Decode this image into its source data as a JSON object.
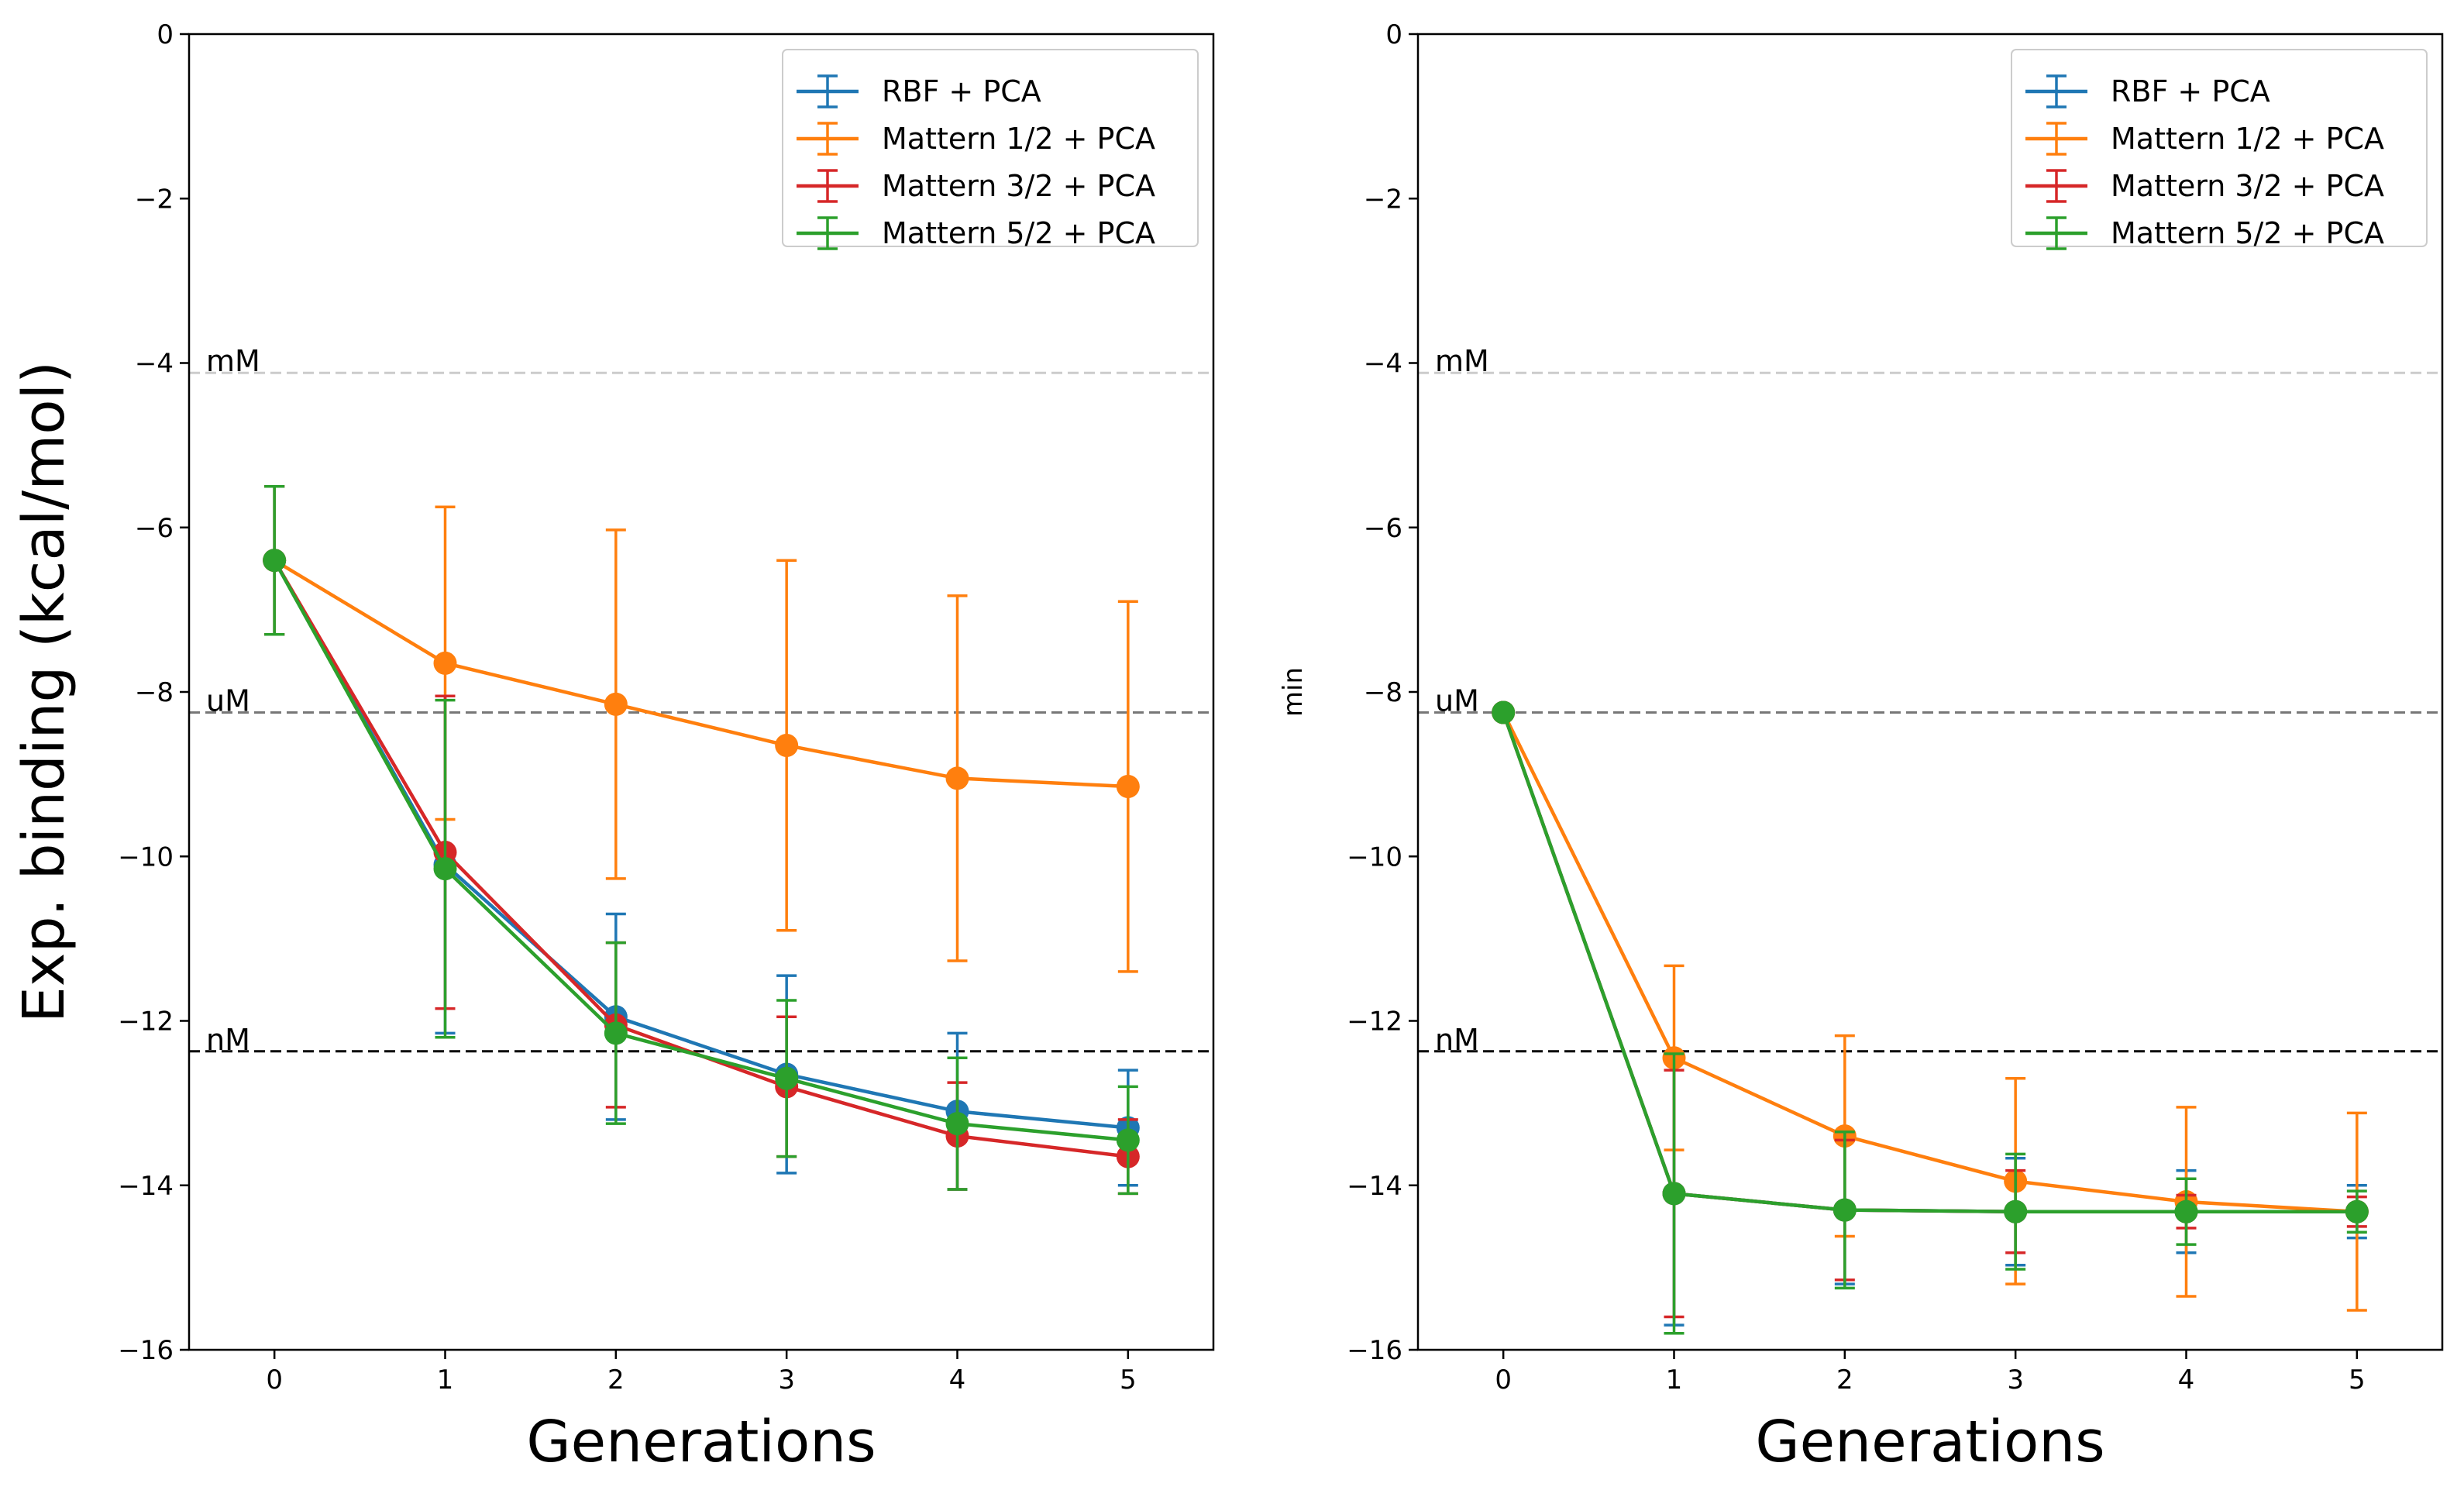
{
  "colors": {
    "rbf": "#1f77b4",
    "m12": "#ff7f0e",
    "m32": "#d62728",
    "m52": "#2ca02c",
    "mM_line": "#cccccc",
    "uM_line": "#777777",
    "nM_line": "#000000"
  },
  "chart_data": [
    {
      "type": "line",
      "title": "",
      "xlabel": "Generations",
      "ylabel": "Exp. binding (kcal/mol)",
      "xlim": [
        -0.5,
        5.5
      ],
      "ylim": [
        -16,
        0
      ],
      "xticks": [
        0,
        1,
        2,
        3,
        4,
        5
      ],
      "yticks": [
        0,
        -2,
        -4,
        -6,
        -8,
        -10,
        -12,
        -14,
        -16
      ],
      "grid": false,
      "legend_position": "top-right",
      "reference_lines": [
        {
          "label": "mM",
          "y": -4.12,
          "color_key": "mM_line"
        },
        {
          "label": "uM",
          "y": -8.25,
          "color_key": "uM_line"
        },
        {
          "label": "nM",
          "y": -12.37,
          "color_key": "nM_line"
        }
      ],
      "series": [
        {
          "name": "RBF + PCA",
          "color_key": "rbf",
          "x": [
            0,
            1,
            2,
            3,
            4,
            5
          ],
          "y": [
            -6.4,
            -10.1,
            -11.95,
            -12.65,
            -13.1,
            -13.3
          ],
          "err": [
            0.9,
            2.05,
            1.25,
            1.2,
            0.95,
            0.7
          ]
        },
        {
          "name": "Mattern 1/2 + PCA",
          "color_key": "m12",
          "x": [
            0,
            1,
            2,
            3,
            4,
            5
          ],
          "y": [
            -6.4,
            -7.65,
            -8.15,
            -8.65,
            -9.05,
            -9.15
          ],
          "err": [
            0.9,
            1.9,
            2.12,
            2.25,
            2.22,
            2.25
          ]
        },
        {
          "name": "Mattern 3/2 + PCA",
          "color_key": "m32",
          "x": [
            0,
            1,
            2,
            3,
            4,
            5
          ],
          "y": [
            -6.4,
            -9.95,
            -12.05,
            -12.8,
            -13.4,
            -13.65
          ],
          "err": [
            0.9,
            1.9,
            1.0,
            0.85,
            0.65,
            0.45
          ]
        },
        {
          "name": "Mattern 5/2 + PCA",
          "color_key": "m52",
          "x": [
            0,
            1,
            2,
            3,
            4,
            5
          ],
          "y": [
            -6.4,
            -10.15,
            -12.15,
            -12.7,
            -13.25,
            -13.45
          ],
          "err": [
            0.9,
            2.05,
            1.1,
            0.95,
            0.8,
            0.65
          ]
        }
      ]
    },
    {
      "type": "line",
      "title": "",
      "xlabel": "Generations",
      "ylabel": "min",
      "xlim": [
        -0.5,
        5.5
      ],
      "ylim": [
        -16,
        0
      ],
      "xticks": [
        0,
        1,
        2,
        3,
        4,
        5
      ],
      "yticks": [
        0,
        -2,
        -4,
        -6,
        -8,
        -10,
        -12,
        -14,
        -16
      ],
      "grid": false,
      "legend_position": "top-right",
      "reference_lines": [
        {
          "label": "mM",
          "y": -4.12,
          "color_key": "mM_line"
        },
        {
          "label": "uM",
          "y": -8.25,
          "color_key": "uM_line"
        },
        {
          "label": "nM",
          "y": -12.37,
          "color_key": "nM_line"
        }
      ],
      "series": [
        {
          "name": "RBF + PCA",
          "color_key": "rbf",
          "x": [
            0,
            1,
            2,
            3,
            4,
            5
          ],
          "y": [
            -8.25,
            -14.1,
            -14.3,
            -14.32,
            -14.32,
            -14.32
          ],
          "err": [
            0.0,
            1.6,
            0.9,
            0.65,
            0.5,
            0.32
          ]
        },
        {
          "name": "Mattern 1/2 + PCA",
          "color_key": "m12",
          "x": [
            0,
            1,
            2,
            3,
            4,
            5
          ],
          "y": [
            -8.25,
            -12.45,
            -13.4,
            -13.95,
            -14.2,
            -14.32
          ],
          "err": [
            0.0,
            1.12,
            1.22,
            1.25,
            1.15,
            1.2
          ]
        },
        {
          "name": "Mattern 3/2 + PCA",
          "color_key": "m32",
          "x": [
            0,
            1,
            2,
            3,
            4,
            5
          ],
          "y": [
            -8.25,
            -14.1,
            -14.3,
            -14.32,
            -14.32,
            -14.32
          ],
          "err": [
            0.0,
            1.5,
            0.85,
            0.5,
            0.2,
            0.18
          ]
        },
        {
          "name": "Mattern 5/2 + PCA",
          "color_key": "m52",
          "x": [
            0,
            1,
            2,
            3,
            4,
            5
          ],
          "y": [
            -8.25,
            -14.1,
            -14.3,
            -14.32,
            -14.32,
            -14.32
          ],
          "err": [
            0.0,
            1.7,
            0.95,
            0.7,
            0.4,
            0.25
          ]
        }
      ]
    }
  ]
}
